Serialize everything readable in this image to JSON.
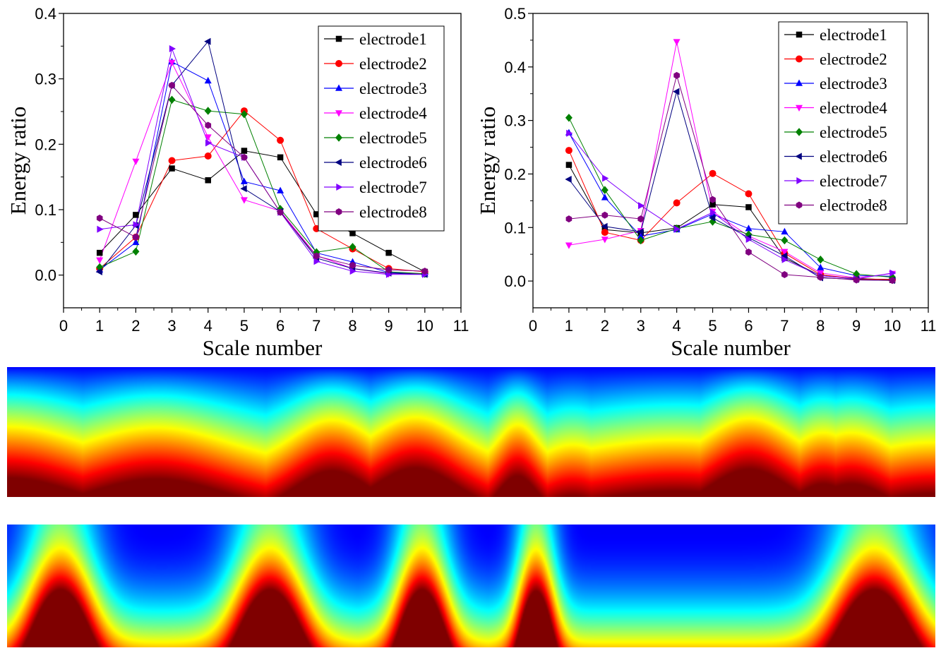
{
  "chart_data": [
    {
      "type": "line",
      "xlabel": "Scale number",
      "ylabel": "Energy ratio",
      "xlim": [
        0,
        11
      ],
      "ylim": [
        -0.05,
        0.4
      ],
      "xticks": [
        "0",
        "1",
        "2",
        "3",
        "4",
        "5",
        "6",
        "7",
        "8",
        "9",
        "10",
        "11"
      ],
      "yticks": [
        "0.0",
        "0.1",
        "0.2",
        "0.3",
        "0.4"
      ],
      "legend_position": "top-right",
      "x": [
        1,
        2,
        3,
        4,
        5,
        6,
        7,
        8,
        9,
        10
      ],
      "series": [
        {
          "name": "electrode1",
          "color": "#000000",
          "marker": "square",
          "values": [
            0.034,
            0.092,
            0.163,
            0.145,
            0.19,
            0.18,
            0.093,
            0.064,
            0.034,
            0.005
          ]
        },
        {
          "name": "electrode2",
          "color": "#ff0000",
          "marker": "circle",
          "values": [
            0.01,
            0.058,
            0.175,
            0.182,
            0.251,
            0.206,
            0.071,
            0.04,
            0.01,
            0.005
          ]
        },
        {
          "name": "electrode3",
          "color": "#0000ff",
          "marker": "triangle-up",
          "values": [
            0.008,
            0.05,
            0.326,
            0.297,
            0.143,
            0.129,
            0.034,
            0.02,
            0.004,
            0.002
          ]
        },
        {
          "name": "electrode4",
          "color": "#ff00ff",
          "marker": "triangle-down",
          "values": [
            0.023,
            0.174,
            0.325,
            0.211,
            0.115,
            0.098,
            0.03,
            0.01,
            0.002,
            0.002
          ]
        },
        {
          "name": "electrode5",
          "color": "#008000",
          "marker": "diamond",
          "values": [
            0.012,
            0.036,
            0.268,
            0.251,
            0.246,
            0.101,
            0.035,
            0.043,
            0.005,
            0.002
          ]
        },
        {
          "name": "electrode6",
          "color": "#000080",
          "marker": "triangle-left",
          "values": [
            0.005,
            0.076,
            0.29,
            0.357,
            0.132,
            0.097,
            0.026,
            0.01,
            0.003,
            0.001
          ]
        },
        {
          "name": "electrode7",
          "color": "#8000ff",
          "marker": "triangle-right",
          "values": [
            0.07,
            0.077,
            0.346,
            0.202,
            0.18,
            0.096,
            0.021,
            0.006,
            0.001,
            0.001
          ]
        },
        {
          "name": "electrode8",
          "color": "#800080",
          "marker": "hexagon",
          "values": [
            0.087,
            0.058,
            0.29,
            0.229,
            0.18,
            0.096,
            0.029,
            0.015,
            0.008,
            0.006
          ]
        }
      ]
    },
    {
      "type": "line",
      "xlabel": "Scale number",
      "ylabel": "Energy ratio",
      "xlim": [
        0,
        11
      ],
      "ylim": [
        -0.05,
        0.5
      ],
      "xticks": [
        "0",
        "1",
        "2",
        "3",
        "4",
        "5",
        "6",
        "7",
        "8",
        "9",
        "10",
        "11"
      ],
      "yticks": [
        "0.0",
        "0.1",
        "0.2",
        "0.3",
        "0.4",
        "0.5"
      ],
      "legend_position": "top-right",
      "x": [
        1,
        2,
        3,
        4,
        5,
        6,
        7,
        8,
        9,
        10
      ],
      "series": [
        {
          "name": "electrode1",
          "color": "#000000",
          "marker": "square",
          "values": [
            0.217,
            0.096,
            0.09,
            0.099,
            0.143,
            0.138,
            0.043,
            0.01,
            0.005,
            0.002
          ]
        },
        {
          "name": "electrode2",
          "color": "#ff0000",
          "marker": "circle",
          "values": [
            0.244,
            0.091,
            0.076,
            0.146,
            0.201,
            0.163,
            0.052,
            0.012,
            0.004,
            0.003
          ]
        },
        {
          "name": "electrode3",
          "color": "#0000ff",
          "marker": "triangle-up",
          "values": [
            0.277,
            0.156,
            0.084,
            0.096,
            0.125,
            0.098,
            0.092,
            0.025,
            0.01,
            0.009
          ]
        },
        {
          "name": "electrode4",
          "color": "#ff00ff",
          "marker": "triangle-down",
          "values": [
            0.067,
            0.078,
            0.094,
            0.447,
            0.13,
            0.084,
            0.055,
            0.015,
            0.006,
            0.014
          ]
        },
        {
          "name": "electrode5",
          "color": "#008000",
          "marker": "diamond",
          "values": [
            0.305,
            0.17,
            0.076,
            0.098,
            0.111,
            0.087,
            0.076,
            0.04,
            0.013,
            0.007
          ]
        },
        {
          "name": "electrode6",
          "color": "#000080",
          "marker": "triangle-left",
          "values": [
            0.19,
            0.102,
            0.092,
            0.354,
            0.118,
            0.081,
            0.047,
            0.006,
            0.003,
            0.001
          ]
        },
        {
          "name": "electrode7",
          "color": "#8000ff",
          "marker": "triangle-right",
          "values": [
            0.276,
            0.192,
            0.141,
            0.097,
            0.128,
            0.078,
            0.04,
            0.01,
            0.004,
            0.015
          ]
        },
        {
          "name": "electrode8",
          "color": "#800080",
          "marker": "hexagon",
          "values": [
            0.116,
            0.123,
            0.116,
            0.384,
            0.152,
            0.054,
            0.012,
            0.007,
            0.002,
            0.001
          ]
        }
      ]
    },
    {
      "type": "heatmap",
      "colormap": "jet",
      "bands": [
        {
          "center": 0.0,
          "sigma": 0.08,
          "amp": 0.82
        },
        {
          "center": 0.16,
          "sigma": 0.08,
          "amp": 0.8
        },
        {
          "center": 0.35,
          "sigma": 0.045,
          "amp": 0.95
        },
        {
          "center": 0.44,
          "sigma": 0.05,
          "amp": 1.0
        },
        {
          "center": 0.55,
          "sigma": 0.022,
          "amp": 0.86
        },
        {
          "center": 0.61,
          "sigma": 0.03,
          "amp": 0.45
        },
        {
          "center": 0.72,
          "sigma": 0.1,
          "amp": 0.55
        },
        {
          "center": 0.8,
          "sigma": 0.048,
          "amp": 0.98
        },
        {
          "center": 0.88,
          "sigma": 0.032,
          "amp": 0.7
        },
        {
          "center": 0.91,
          "sigma": 0.04,
          "amp": 0.7
        },
        {
          "center": 1.0,
          "sigma": 0.07,
          "amp": 0.5
        }
      ]
    },
    {
      "type": "heatmap",
      "colormap": "jet",
      "bands": [
        {
          "center": 0.057,
          "sigma": 0.028,
          "amp": 1.0
        },
        {
          "center": 0.283,
          "sigma": 0.03,
          "amp": 1.0
        },
        {
          "center": 0.447,
          "sigma": 0.022,
          "amp": 1.0
        },
        {
          "center": 0.57,
          "sigma": 0.016,
          "amp": 0.98
        },
        {
          "center": 0.935,
          "sigma": 0.035,
          "amp": 1.0
        }
      ]
    }
  ]
}
